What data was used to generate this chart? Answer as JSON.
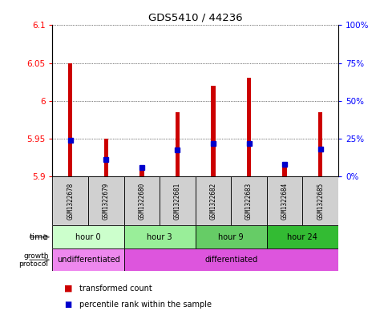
{
  "title": "GDS5410 / 44236",
  "samples": [
    "GSM1322678",
    "GSM1322679",
    "GSM1322680",
    "GSM1322681",
    "GSM1322682",
    "GSM1322683",
    "GSM1322684",
    "GSM1322685"
  ],
  "red_values": [
    6.05,
    5.95,
    5.915,
    5.985,
    6.02,
    6.03,
    5.915,
    5.985
  ],
  "blue_values": [
    5.948,
    5.922,
    5.912,
    5.935,
    5.944,
    5.944,
    5.916,
    5.936
  ],
  "bar_bottom": 5.9,
  "ylim_left": [
    5.9,
    6.1
  ],
  "ylim_right": [
    0,
    100
  ],
  "yticks_left": [
    5.9,
    5.95,
    6.0,
    6.05,
    6.1
  ],
  "yticks_right": [
    0,
    25,
    50,
    75,
    100
  ],
  "ytick_labels_left": [
    "5.9",
    "5.95",
    "6",
    "6.05",
    "6.1"
  ],
  "ytick_labels_right": [
    "0%",
    "25%",
    "50%",
    "75%",
    "100%"
  ],
  "time_groups": [
    {
      "label": "hour 0",
      "start": 0,
      "end": 1,
      "color": "#ccffcc"
    },
    {
      "label": "hour 3",
      "start": 2,
      "end": 3,
      "color": "#99ee99"
    },
    {
      "label": "hour 9",
      "start": 4,
      "end": 5,
      "color": "#66cc66"
    },
    {
      "label": "hour 24",
      "start": 6,
      "end": 7,
      "color": "#33bb33"
    }
  ],
  "growth_groups": [
    {
      "label": "undifferentiated",
      "start": 0,
      "end": 1,
      "color": "#ee88ee"
    },
    {
      "label": "differentiated",
      "start": 2,
      "end": 7,
      "color": "#dd55dd"
    }
  ],
  "bar_color": "#cc0000",
  "blue_color": "#0000cc",
  "sample_box_color": "#d0d0d0",
  "bar_width": 0.12,
  "blue_marker_size": 4
}
